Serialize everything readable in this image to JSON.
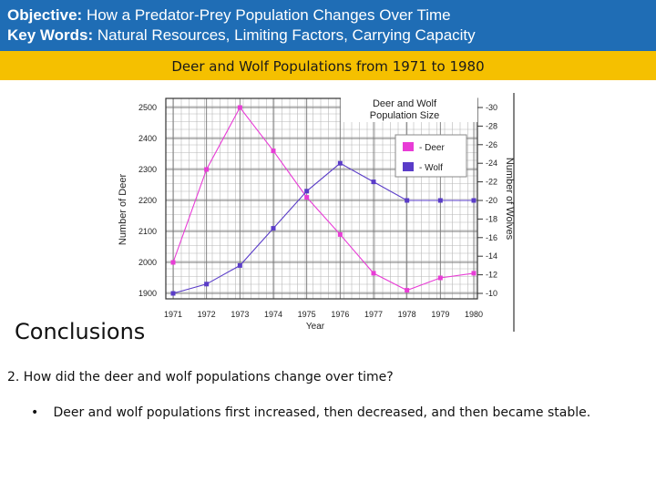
{
  "header": {
    "objective_label": "Objective:",
    "objective_text": "How a Predator-Prey Population Changes Over Time",
    "keywords_label": "Key Words:",
    "keywords_text": "Natural Resources, Limiting Factors, Carrying Capacity"
  },
  "banner": {
    "title": "Deer and Wolf Populations from 1971 to 1980"
  },
  "chart_data": {
    "type": "line",
    "title": "Deer and Wolf Population Size",
    "xlabel": "Year",
    "ylabel": "Number of Deer",
    "y2label": "Number of Wolves",
    "x": [
      1971,
      1972,
      1973,
      1974,
      1975,
      1976,
      1977,
      1978,
      1979,
      1980
    ],
    "ylim": [
      1900,
      2500
    ],
    "y2lim": [
      10,
      30
    ],
    "yticks": [
      1900,
      2000,
      2100,
      2200,
      2300,
      2400,
      2500
    ],
    "y2ticks": [
      10,
      12,
      14,
      16,
      18,
      20,
      22,
      24,
      26,
      28,
      30
    ],
    "series": [
      {
        "name": "Deer",
        "axis": "left",
        "color": "#e83cd6",
        "values": [
          2000,
          2300,
          2500,
          2360,
          2210,
          2090,
          1965,
          1910,
          1950,
          1965
        ]
      },
      {
        "name": "Wolf",
        "axis": "right",
        "color": "#5a3cc8",
        "values": [
          10,
          11,
          13,
          17,
          21,
          24,
          22,
          20,
          20,
          20
        ]
      }
    ],
    "legend": "top-right",
    "grid": true
  },
  "conclusions": {
    "heading": "Conclusions",
    "question": "2.  How did the deer and wolf populations change over time?",
    "bullet_marker": "•",
    "answer": "Deer and wolf populations first increased, then decreased, and then became stable."
  }
}
